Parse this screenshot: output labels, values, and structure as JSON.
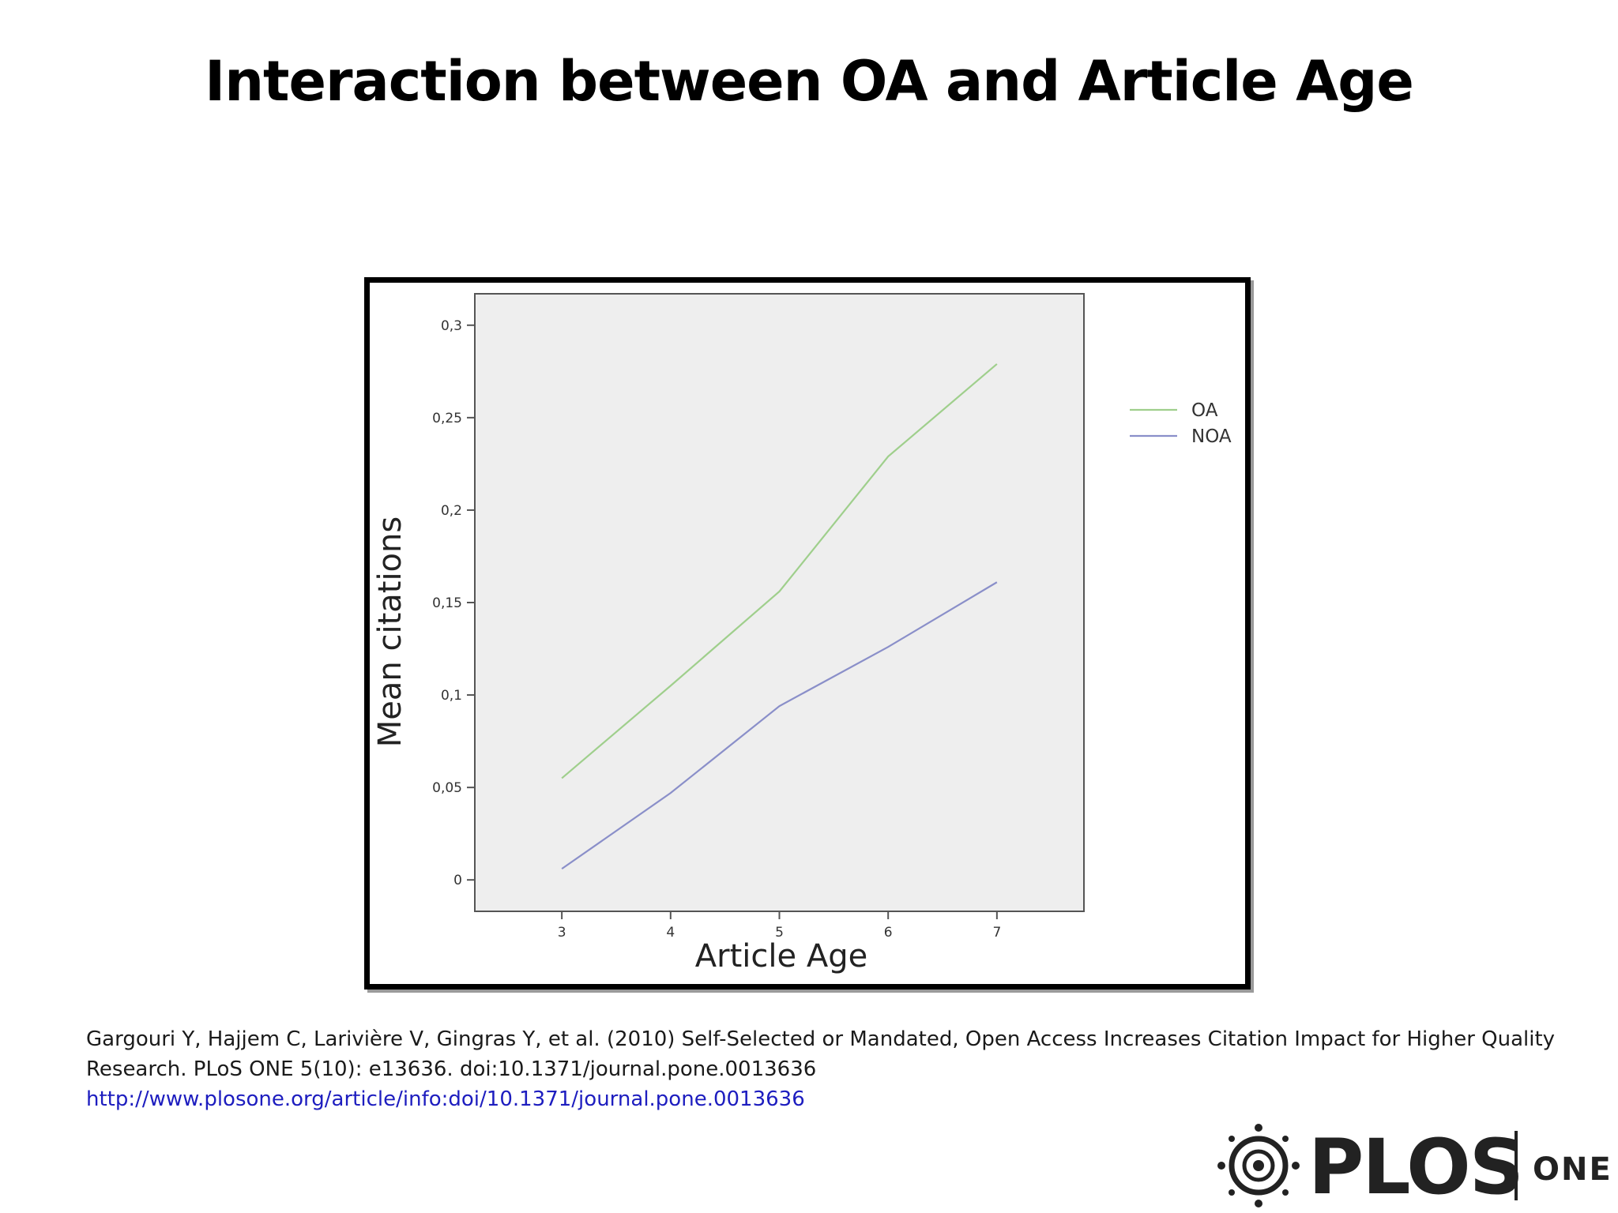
{
  "slide": {
    "title": "Interaction between OA and Article Age"
  },
  "chart_data": {
    "type": "line",
    "xlabel": "Article Age",
    "ylabel": "Mean citations",
    "x": [
      3,
      4,
      5,
      6,
      7
    ],
    "series": [
      {
        "name": "OA",
        "values": [
          0.055,
          0.105,
          0.156,
          0.229,
          0.279
        ],
        "color": "#9fcf8c"
      },
      {
        "name": "NOA",
        "values": [
          0.006,
          0.047,
          0.094,
          0.126,
          0.161
        ],
        "color": "#8a8fc9"
      }
    ],
    "x_ticks": [
      "3",
      "4",
      "5",
      "6",
      "7"
    ],
    "y_ticks": [
      0,
      0.05,
      0.1,
      0.15,
      0.2,
      0.25,
      0.3
    ],
    "y_tick_labels": [
      "0",
      "0,05",
      "0,1",
      "0,15",
      "0,2",
      "0,25",
      "0,3"
    ],
    "xlim": [
      2.2,
      7.8
    ],
    "ylim": [
      -0.017,
      0.317
    ],
    "plot_background": "#eeeeee",
    "grid": false,
    "legend_position": "right"
  },
  "citation": {
    "line1": "Gargouri Y, Hajjem C, Larivière V, Gingras Y, et al. (2010) Self-Selected or Mandated, Open Access Increases Citation Impact for Higher Quality",
    "line2": "Research. PLoS ONE 5(10): e13636. doi:10.1371/journal.pone.0013636",
    "url": "http://www.plosone.org/article/info:doi/10.1371/journal.pone.0013636"
  },
  "logo": {
    "icon": "plos-globe-icon",
    "wordmark": "PLOS",
    "subtitle": "ONE"
  }
}
